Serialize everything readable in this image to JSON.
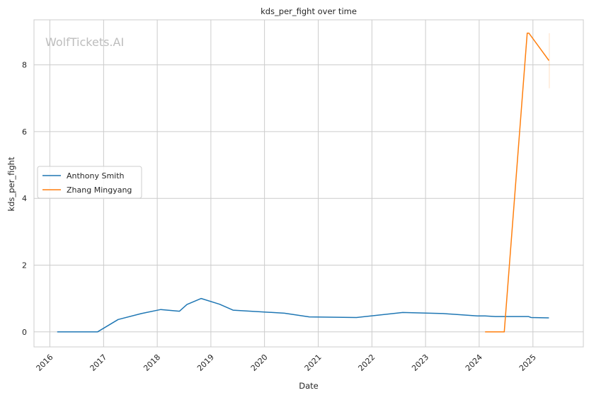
{
  "chart_data": {
    "type": "line",
    "title": "kds_per_fight over time",
    "xlabel": "Date",
    "ylabel": "kds_per_fight",
    "watermark": "WolfTickets.AI",
    "x_ticks": [
      "2016",
      "2017",
      "2018",
      "2019",
      "2020",
      "2021",
      "2022",
      "2023",
      "2024",
      "2025"
    ],
    "y_ticks": [
      "0",
      "2",
      "4",
      "6",
      "8"
    ],
    "xlim": [
      "2015-09-15",
      "2025-12-10"
    ],
    "ylim": [
      -0.45,
      9.35
    ],
    "grid": true,
    "legend_position": "center-left",
    "series": [
      {
        "name": "Anthony Smith",
        "color": "#1f77b4",
        "points": [
          [
            "2016-02-20",
            0.0
          ],
          [
            "2016-11-20",
            0.0
          ],
          [
            "2017-04-10",
            0.37
          ],
          [
            "2017-09-15",
            0.55
          ],
          [
            "2018-01-25",
            0.67
          ],
          [
            "2018-06-01",
            0.62
          ],
          [
            "2018-07-22",
            0.82
          ],
          [
            "2018-10-27",
            1.0
          ],
          [
            "2019-03-01",
            0.83
          ],
          [
            "2019-06-01",
            0.65
          ],
          [
            "2020-05-15",
            0.56
          ],
          [
            "2020-11-01",
            0.45
          ],
          [
            "2021-09-18",
            0.43
          ],
          [
            "2022-07-30",
            0.58
          ],
          [
            "2023-05-01",
            0.55
          ],
          [
            "2023-12-20",
            0.48
          ],
          [
            "2024-02-10",
            0.48
          ],
          [
            "2024-04-20",
            0.46
          ],
          [
            "2024-12-01",
            0.46
          ],
          [
            "2024-12-20",
            0.43
          ],
          [
            "2025-04-20",
            0.42
          ]
        ]
      },
      {
        "name": "Zhang Mingyang",
        "color": "#ff7f0e",
        "points": [
          [
            "2024-02-10",
            0.0
          ],
          [
            "2024-06-20",
            0.0
          ],
          [
            "2024-11-23",
            8.95
          ],
          [
            "2024-12-05",
            8.95
          ],
          [
            "2025-04-20",
            8.13
          ]
        ]
      }
    ]
  }
}
